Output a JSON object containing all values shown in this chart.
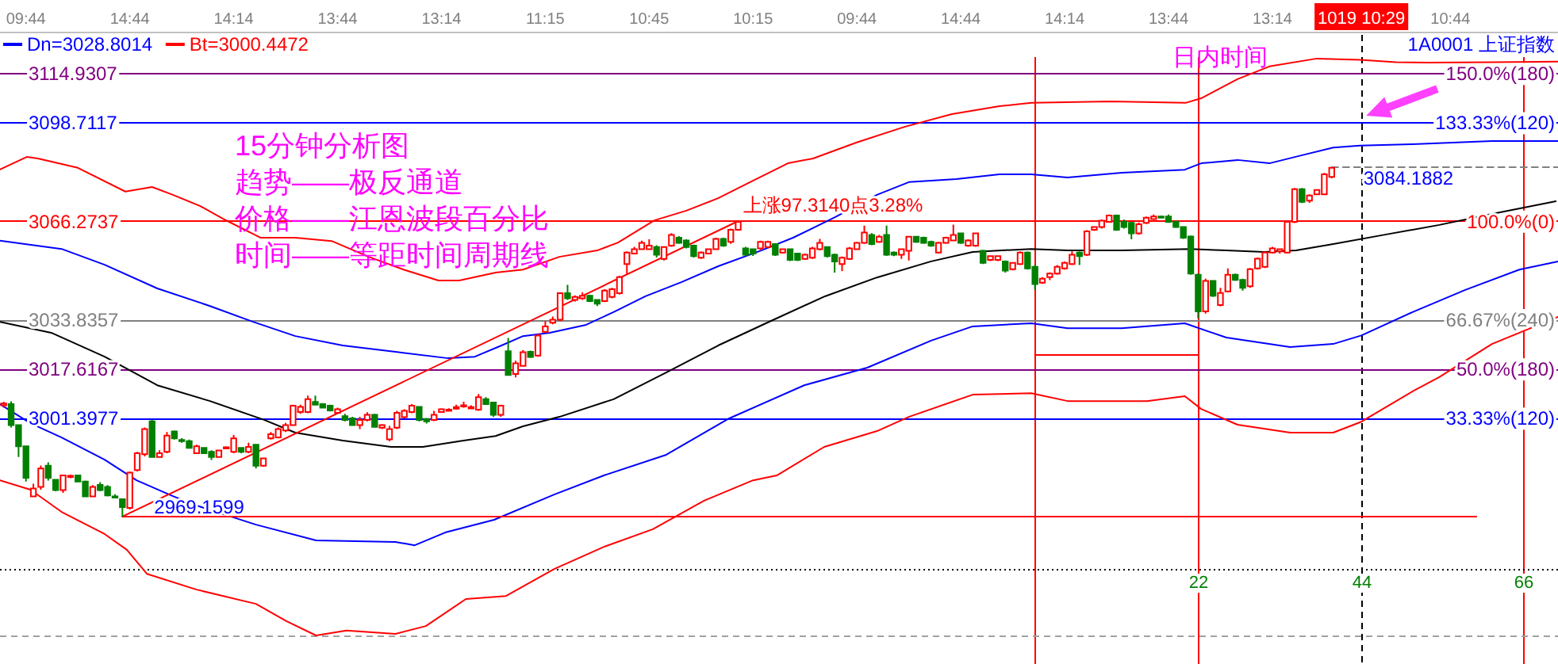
{
  "chart_data": {
    "type": "candlestick",
    "title": "1A0001 上证指数",
    "xlabel": "日内时间",
    "categories": [
      null,
      null,
      null,
      "09:44",
      null,
      null,
      null,
      null,
      null,
      null,
      null,
      null,
      null,
      null,
      null,
      null,
      null,
      "14:44",
      null,
      null,
      null,
      null,
      null,
      null,
      null,
      null,
      null,
      null,
      null,
      null,
      null,
      "14:14",
      null,
      null,
      null,
      null,
      null,
      null,
      null,
      null,
      null,
      null,
      null,
      null,
      null,
      "13:44",
      null,
      null,
      null,
      null,
      null,
      null,
      null,
      null,
      null,
      null,
      null,
      null,
      null,
      "13:14",
      null,
      null,
      null,
      null,
      null,
      null,
      null,
      null,
      null,
      null,
      null,
      null,
      null,
      "11:15",
      null,
      null,
      null,
      null,
      null,
      null,
      null,
      null,
      null,
      null,
      null,
      null,
      null,
      "10:45",
      null,
      null,
      null,
      null,
      null,
      null,
      null,
      null,
      null,
      null,
      null,
      null,
      null,
      "10:15",
      null,
      null,
      null,
      null,
      null,
      null,
      null,
      null,
      null,
      null,
      null,
      null,
      null,
      "09:44",
      null,
      null,
      null,
      null,
      null,
      null,
      null,
      null,
      null,
      null,
      null,
      null,
      null,
      "14:44",
      null,
      null,
      null,
      null,
      null,
      null,
      null,
      null,
      null,
      null,
      null,
      null,
      null,
      "14:14",
      null,
      null,
      null,
      null,
      null,
      null,
      null,
      null,
      null,
      null,
      null,
      null,
      null,
      "13:44",
      null,
      null,
      null,
      null,
      null,
      null,
      null,
      null,
      null,
      null,
      null,
      null,
      null,
      "13:14",
      null,
      null,
      null,
      null,
      null,
      null,
      null,
      null,
      null,
      null,
      null,
      "1019 10:29",
      null,
      null,
      null,
      null,
      null,
      null,
      null,
      null,
      null,
      null,
      null,
      "10:44",
      null,
      null,
      null,
      null,
      null,
      null,
      null,
      null,
      null,
      null,
      null,
      null,
      null,
      null
    ],
    "ohlc": [
      [
        3005.8,
        3007,
        3005,
        3006.4
      ],
      [
        3006.2,
        3007.1,
        2998.5,
        2999.3
      ],
      [
        2999.3,
        2999.5,
        2988.8,
        2992.3
      ],
      [
        2992.3,
        2992.5,
        2980.7,
        2981.9
      ],
      [
        2975.8,
        2980,
        2975.5,
        2978.4
      ],
      [
        2978.9,
        2986,
        2978,
        2985.0
      ],
      [
        2985.9,
        2987,
        2981,
        2981.9
      ],
      [
        2981.3,
        2981.5,
        2977.5,
        2977.9
      ],
      [
        2977.9,
        2983,
        2977,
        2982.7
      ],
      [
        2982.2,
        2983,
        2981.8,
        2982.6
      ],
      [
        2982.7,
        2983,
        2980.5,
        2980.7
      ],
      [
        2980.7,
        2981,
        2975.5,
        2975.8
      ],
      [
        2975.8,
        2979.5,
        2975.5,
        2978.9
      ],
      [
        2979.6,
        2980.5,
        2977.5,
        2977.9
      ],
      [
        2978.9,
        2979.5,
        2975.8,
        2976.1
      ],
      [
        2975.8,
        2976.5,
        2975.2,
        2975.5
      ],
      [
        2974.9,
        2975,
        2969.1599,
        2972.3
      ],
      [
        2972.0,
        2984,
        2971.5,
        2983.6
      ],
      [
        2984.5,
        2990.5,
        2984,
        2990.0
      ],
      [
        2989.7,
        2998.5,
        2989,
        2998.0
      ],
      [
        3000.5,
        3001,
        2988.5,
        2988.8
      ],
      [
        2988.8,
        2991,
        2988.5,
        2990.0
      ],
      [
        2990.5,
        2997,
        2990,
        2995.8
      ],
      [
        2997.2,
        2997.5,
        2994.5,
        2994.9
      ],
      [
        2994.4,
        2995,
        2993.5,
        2994.0
      ],
      [
        2994.0,
        2994.5,
        2991.5,
        2991.8
      ],
      [
        2990.0,
        2992.8,
        2989.8,
        2992.3
      ],
      [
        2991.8,
        2992,
        2989.8,
        2990.0
      ],
      [
        2990.5,
        2991,
        2987.8,
        2988.8
      ],
      [
        2988.8,
        2991.2,
        2988.5,
        2990.9
      ],
      [
        2991.6,
        2992.3,
        2991.3,
        2992.0
      ],
      [
        2990.5,
        2996,
        2990,
        2994.9
      ],
      [
        2991.8,
        2992,
        2990,
        2990.5
      ],
      [
        2990.5,
        2993.5,
        2990,
        2992.1
      ],
      [
        2992.8,
        2993,
        2985,
        2985.9
      ],
      [
        2985.9,
        2988.6,
        2985.6,
        2988.3
      ],
      [
        2994.9,
        2997,
        2994.5,
        2996.3
      ],
      [
        2995.2,
        2998.5,
        2994.9,
        2998.0
      ],
      [
        2997.5,
        3000,
        2997,
        2999.3
      ],
      [
        2999.3,
        3006,
        2999,
        3005.7
      ],
      [
        3003.6,
        3006,
        3003,
        3005.3
      ],
      [
        3003.6,
        3009,
        3003.2,
        3007.8
      ],
      [
        3006.9,
        3009,
        3005.8,
        3006.0
      ],
      [
        3006.2,
        3006.5,
        3004.8,
        3005.0
      ],
      [
        3005.7,
        3006,
        3003.8,
        3004.1
      ],
      [
        3003.3,
        3005,
        3003,
        3004.5
      ],
      [
        3002.2,
        3003,
        3000.5,
        3001.0
      ],
      [
        3001.5,
        3002,
        2999,
        2999.3
      ],
      [
        2999.3,
        3002,
        2998,
        3001.0
      ],
      [
        3001.0,
        3003.5,
        3000.5,
        3002.7
      ],
      [
        3002.7,
        3003,
        2998.4,
        2998.7
      ],
      [
        2998.4,
        2999.6,
        2998,
        2999.3
      ],
      [
        2994.6,
        2999,
        2994,
        2998.0
      ],
      [
        2998.4,
        3004,
        2998,
        3003.3
      ],
      [
        3001.9,
        3004.5,
        3001.5,
        3004.0
      ],
      [
        3003.6,
        3006.2,
        3003.2,
        3005.7
      ],
      [
        3005.3,
        3005.5,
        3000.5,
        3001.0
      ],
      [
        3001.3,
        3001.6,
        2999.8,
        3000.5
      ],
      [
        3001.0,
        3004,
        3000.6,
        3002.7
      ],
      [
        3003.6,
        3004.8,
        3003.3,
        3004.5
      ],
      [
        3004.2,
        3004.8,
        3003.8,
        3004.4
      ],
      [
        3004.7,
        3006,
        3004.4,
        3005.2
      ],
      [
        3005.4,
        3007,
        3005,
        3005.8
      ],
      [
        3004.8,
        3005.8,
        3004.5,
        3005.2
      ],
      [
        3004.4,
        3009.5,
        3004,
        3008.5
      ],
      [
        3007.8,
        3008.5,
        3006,
        3006.2
      ],
      [
        3006.7,
        3007,
        3002,
        3002.7
      ],
      [
        3002.7,
        3006,
        3002,
        3005.7
      ],
      [
        3023.6,
        3028,
        3015.5,
        3015.8
      ],
      [
        3016.1,
        3020.5,
        3015,
        3019.6
      ],
      [
        3018.8,
        3024,
        3018.5,
        3023.3
      ],
      [
        3023.4,
        3023.8,
        3021.4,
        3021.7
      ],
      [
        3022.2,
        3029.5,
        3021.8,
        3028.8
      ],
      [
        3030.0,
        3033.5,
        3029.6,
        3031.8
      ],
      [
        3033.0,
        3035,
        3032.5,
        3034.0
      ],
      [
        3034.0,
        3043,
        3033.5,
        3042.7
      ],
      [
        3042.7,
        3045.5,
        3040.5,
        3041.0
      ],
      [
        3040.5,
        3042,
        3040,
        3041.5
      ],
      [
        3041.0,
        3043,
        3040.5,
        3041.9
      ],
      [
        3041.9,
        3042.2,
        3039.8,
        3040.1
      ],
      [
        3040.5,
        3040.8,
        3038.5,
        3039.3
      ],
      [
        3040.1,
        3044,
        3039.8,
        3043.6
      ],
      [
        3041.5,
        3044.5,
        3041,
        3044.0
      ],
      [
        3042.7,
        3048.5,
        3042.3,
        3048.0
      ],
      [
        3052.3,
        3056.5,
        3049,
        3056.1
      ],
      [
        3055.8,
        3058,
        3055.5,
        3057.2
      ],
      [
        3057.2,
        3060,
        3057,
        3059.3
      ],
      [
        3057.2,
        3060.5,
        3057,
        3058.4
      ],
      [
        3057.9,
        3058.5,
        3054.5,
        3055.4
      ],
      [
        3054.0,
        3058.2,
        3053.5,
        3057.9
      ],
      [
        3058.4,
        3062.5,
        3058,
        3061.9
      ],
      [
        3061.0,
        3061.5,
        3059,
        3059.3
      ],
      [
        3060.1,
        3060.5,
        3057.5,
        3057.9
      ],
      [
        3058.4,
        3058.7,
        3054.5,
        3054.9
      ],
      [
        3054.4,
        3056.5,
        3054,
        3056.1
      ],
      [
        3055.8,
        3057.5,
        3055.5,
        3057.2
      ],
      [
        3057.2,
        3061,
        3057,
        3060.6
      ],
      [
        3060.6,
        3061,
        3058,
        3058.4
      ],
      [
        3059.6,
        3064,
        3059,
        3063.6
      ],
      [
        3063.6,
        3066.4739,
        3063.3,
        3066.2
      ],
      [
        3057.5,
        3058,
        3054.9,
        3055.4
      ],
      [
        3057.2,
        3057.5,
        3055,
        3055.8
      ],
      [
        3057.5,
        3060,
        3057,
        3059.6
      ],
      [
        3057.9,
        3060,
        3057.5,
        3059.6
      ],
      [
        3058.9,
        3059.2,
        3055,
        3055.4
      ],
      [
        3056.1,
        3057.5,
        3055.8,
        3057.2
      ],
      [
        3057.2,
        3057.5,
        3053.3,
        3053.7
      ],
      [
        3055.8,
        3056,
        3053.3,
        3053.7
      ],
      [
        3054.0,
        3055.8,
        3053.7,
        3055.4
      ],
      [
        3054.4,
        3058,
        3054,
        3057.5
      ],
      [
        3057.2,
        3060.6,
        3056.8,
        3059.3
      ],
      [
        3057.9,
        3058.2,
        3054.5,
        3054.9
      ],
      [
        3055.4,
        3055.8,
        3049.5,
        3053.2
      ],
      [
        3052.3,
        3054.8,
        3050,
        3054.4
      ],
      [
        3054.0,
        3057.9,
        3053.7,
        3057.5
      ],
      [
        3057.2,
        3059.6,
        3057,
        3059.3
      ],
      [
        3059.3,
        3065,
        3059,
        3062.7
      ],
      [
        3061.9,
        3062.5,
        3058.5,
        3058.9
      ],
      [
        3059.6,
        3061.9,
        3059.3,
        3061.3
      ],
      [
        3061.9,
        3065,
        3055,
        3055.4
      ],
      [
        3056.1,
        3056.5,
        3054.9,
        3055.4
      ],
      [
        3055.4,
        3057.5,
        3054,
        3057.2
      ],
      [
        3056.7,
        3061.6,
        3053.5,
        3061.3
      ],
      [
        3061.3,
        3061.6,
        3059.3,
        3059.6
      ],
      [
        3061.0,
        3061.3,
        3059,
        3059.3
      ],
      [
        3059.6,
        3060,
        3058,
        3058.4
      ],
      [
        3056.1,
        3059.6,
        3055.8,
        3059.3
      ],
      [
        3059.3,
        3061.3,
        3059,
        3061.0
      ],
      [
        3060.1,
        3065.3,
        3059.8,
        3061.9
      ],
      [
        3062.4,
        3062.7,
        3059,
        3059.3
      ],
      [
        3058.4,
        3060.5,
        3058,
        3060.1
      ],
      [
        3058.4,
        3062.7,
        3058,
        3062.4
      ],
      [
        3056.7,
        3057,
        3052.3,
        3052.7
      ],
      [
        3053.7,
        3055.2,
        3053.3,
        3054.9
      ],
      [
        3053.7,
        3055.2,
        3053.3,
        3054.9
      ],
      [
        3053.2,
        3053.5,
        3049.5,
        3050.2
      ],
      [
        3050.6,
        3053,
        3050.2,
        3052.7
      ],
      [
        3052.3,
        3056.5,
        3052,
        3056.1
      ],
      [
        3056.1,
        3056.5,
        3050.5,
        3050.9
      ],
      [
        3051.4,
        3052,
        3043.9,
        3045.7
      ],
      [
        3046.2,
        3048,
        3045.8,
        3047.5
      ],
      [
        3048.0,
        3049.6,
        3047,
        3049.2
      ],
      [
        3049.2,
        3052,
        3048.8,
        3051.4
      ],
      [
        3050.9,
        3053.2,
        3050.5,
        3052.7
      ],
      [
        3052.3,
        3056.5,
        3052,
        3055.4
      ],
      [
        3056.1,
        3056.5,
        3052,
        3054.9
      ],
      [
        3055.4,
        3063.5,
        3055,
        3063.1
      ],
      [
        3063.6,
        3064.8,
        3063.3,
        3064.5
      ],
      [
        3064.5,
        3067,
        3064,
        3066.6
      ],
      [
        3066.2,
        3068.6,
        3066,
        3068.3
      ],
      [
        3068.3,
        3068.6,
        3063.3,
        3063.6
      ],
      [
        3066.2,
        3067,
        3064,
        3064.5
      ],
      [
        3065.9,
        3066.2,
        3060.5,
        3062.4
      ],
      [
        3062.4,
        3066,
        3062,
        3065.4
      ],
      [
        3065.9,
        3068,
        3065.5,
        3067.6
      ],
      [
        3067.1,
        3068.6,
        3066.8,
        3068.0
      ],
      [
        3068.0,
        3068.3,
        3067.3,
        3067.6
      ],
      [
        3068.0,
        3068.6,
        3065.9,
        3066.2
      ],
      [
        3066.2,
        3066.6,
        3064.2,
        3064.5
      ],
      [
        3064.5,
        3064.8,
        3060.6,
        3061.0
      ],
      [
        3061.4,
        3061.7,
        3048.8,
        3049.2
      ],
      [
        3048.8,
        3049.2,
        3034.4,
        3036.7
      ],
      [
        3036.7,
        3047.5,
        3036,
        3046.8
      ],
      [
        3046.8,
        3047,
        3041.5,
        3041.9
      ],
      [
        3038.8,
        3044.5,
        3038.4,
        3042.8
      ],
      [
        3043.3,
        3050.9,
        3043,
        3048.8
      ],
      [
        3048.8,
        3049.2,
        3046.8,
        3047.1
      ],
      [
        3047.1,
        3047.5,
        3043.6,
        3044.5
      ],
      [
        3045.0,
        3051,
        3044.5,
        3050.6
      ],
      [
        3050.9,
        3054.5,
        3050.5,
        3054.1
      ],
      [
        3051.4,
        3056.5,
        3051,
        3056.1
      ],
      [
        3056.1,
        3058,
        3055.8,
        3057.5
      ],
      [
        3056.5,
        3057.5,
        3055.8,
        3057.2
      ],
      [
        3056.1,
        3066.6,
        3055.8,
        3066.2
      ],
      [
        3066.2,
        3077.4,
        3065.8,
        3077.0
      ],
      [
        3077.0,
        3077.4,
        3072.4,
        3072.8
      ],
      [
        3073.2,
        3075.3,
        3072.5,
        3074.9
      ],
      [
        3075.3,
        3077,
        3075,
        3076.7
      ],
      [
        3075.3,
        3082.3,
        3075,
        3081.9
      ],
      [
        3081.0,
        3084.1882,
        3080.6,
        3084.0
      ],
      null,
      null,
      null,
      null,
      null,
      null,
      null,
      null,
      null,
      null,
      null,
      null,
      null,
      null,
      null,
      null,
      null,
      null,
      null,
      null,
      null,
      null,
      null,
      null,
      null,
      null,
      null,
      null,
      null,
      null
    ],
    "series": [
      {
        "type": "line",
        "axis": "x2",
        "color": "#ff0000",
        "x": [
          -139.5,
          -135.9,
          -134.4,
          -129.0,
          -122.6,
          -119.0,
          -116.2,
          -112.5,
          -109.1,
          -104.4,
          -99.7,
          -94.8,
          -89.8,
          -85.1,
          -80.4,
          -77.6,
          -72.7,
          -69.0,
          -64.1,
          -59.0,
          -56.2,
          -51.3,
          -47.0,
          -42.7,
          -38.4,
          -33.3,
          -29.9,
          -24.1,
          -17.6,
          -11.2,
          -4.8,
          -0.5,
          10.2,
          20.3,
          22.4,
          27.3,
          31.6,
          38.0,
          43.8,
          48.7,
          53.0,
          61.6,
          70.5
        ],
        "values": [
          3083.5,
          3087.6,
          3087.1,
          3084.0,
          3076.2,
          3077.7,
          3075.1,
          3071.4,
          3066.8,
          3061.0,
          3061.0,
          3059.9,
          3054.7,
          3050.5,
          3046.9,
          3046.9,
          3049.5,
          3050.5,
          3054.7,
          3056.8,
          3059.4,
          3066.7,
          3069.9,
          3074.0,
          3079.3,
          3085.5,
          3087.1,
          3092.3,
          3097.5,
          3101.7,
          3104.3,
          3105.4,
          3105.9,
          3105.4,
          3106.9,
          3113.2,
          3117.4,
          3120.0,
          3119.6,
          3118.8,
          3118.7,
          3118.8,
          3119.0
        ]
      },
      {
        "type": "line",
        "axis": "x2",
        "color": "#0000ff",
        "x": [
          -139.5,
          -131.2,
          -125.4,
          -118.3,
          -111.2,
          -105.4,
          -99.7,
          -93.3,
          -86.2,
          -79.1,
          -75.5,
          -71.9,
          -69.0,
          -65.4,
          -60.5,
          -56.8,
          -52.5,
          -47.6,
          -42.7,
          -36.9,
          -32.6,
          -26.9,
          -21.3,
          -17.0,
          -10.6,
          -4.8,
          -0.5,
          4.4,
          11.7,
          20.2,
          22.4,
          27.3,
          31.6,
          35.9,
          40.2,
          43.8,
          50.9,
          61.6,
          70.5
        ],
        "values": [
          3060.0,
          3057.3,
          3052.1,
          3044.3,
          3038.5,
          3033.3,
          3028.6,
          3025.5,
          3023.4,
          3021.3,
          3021.8,
          3025.5,
          3028.6,
          3029.7,
          3032.3,
          3036.5,
          3041.7,
          3046.4,
          3051.6,
          3056.8,
          3061.0,
          3067.8,
          3075.1,
          3079.3,
          3080.3,
          3081.9,
          3081.9,
          3080.8,
          3082.4,
          3083.4,
          3085.5,
          3086.6,
          3085.5,
          3088.1,
          3090.7,
          3091.3,
          3091.8,
          3092.8,
          3092.8
        ]
      },
      {
        "type": "line",
        "axis": "x2",
        "color": "#000000",
        "x": [
          -139.5,
          -132.6,
          -125.4,
          -118.3,
          -111.2,
          -103.9,
          -99.7,
          -93.3,
          -86.8,
          -82.5,
          -77.0,
          -72.7,
          -69.0,
          -64.1,
          -56.8,
          -49.7,
          -42.7,
          -35.4,
          -28.3,
          -21.3,
          -14.0,
          -8.4,
          -0.5,
          4.4,
          11.7,
          20.9,
          25.8,
          30.9,
          35.2,
          40.2,
          47.2,
          54.5,
          61.6,
          70.2
        ],
        "values": [
          3033.3,
          3029.7,
          3021.8,
          3012.4,
          3007.2,
          3001.0,
          2996.8,
          2994.2,
          2992.1,
          2992.1,
          2994.2,
          2995.7,
          2998.9,
          3002.0,
          3007.8,
          3016.6,
          3025.5,
          3033.8,
          3041.7,
          3047.9,
          3053.2,
          3056.3,
          3057.3,
          3056.8,
          3056.8,
          3057.3,
          3056.8,
          3056.3,
          3056.8,
          3058.9,
          3062.0,
          3065.2,
          3068.8,
          3073.0
        ]
      },
      {
        "type": "line",
        "axis": "x2",
        "name": "Dn=3028.8014",
        "color": "#0000ff",
        "x": [
          -139.5,
          -135.4,
          -131.2,
          -125.4,
          -121.1,
          -116.2,
          -113.0,
          -105.0,
          -96.9,
          -86.2,
          -83.6,
          -79.5,
          -72.9,
          -64.8,
          -58.1,
          -49.7,
          -41.2,
          -31.1,
          -22.6,
          -14.0,
          -8.4,
          -0.5,
          4.4,
          11.7,
          20.2,
          25.8,
          34.4,
          40.2,
          44,
          50.9,
          58.0,
          65.3,
          70.5
        ],
        "values": [
          3006.2,
          2999.9,
          2995.2,
          2987.9,
          2981.1,
          2975.9,
          2972.8,
          2966.5,
          2961.3,
          2960.8,
          2959.7,
          2963.9,
          2968.1,
          2976.4,
          2982.7,
          2989.5,
          3001.5,
          3012.4,
          3018.2,
          3027.1,
          3031.8,
          3032.8,
          3031.2,
          3031.2,
          3032.8,
          3028.1,
          3025.0,
          3026.0,
          3028.8,
          3036.5,
          3043.8,
          3050.5,
          3053.2
        ]
      },
      {
        "type": "line",
        "axis": "x2",
        "name": "Bt=3000.4472",
        "color": "#ff0000",
        "x": [
          -139.5,
          -135.4,
          -131.2,
          -125.4,
          -122.4,
          -119.7,
          -113.0,
          -105.0,
          -100.9,
          -96.9,
          -92.8,
          -86.2,
          -82.1,
          -76.7,
          -71.3,
          -64.8,
          -58.1,
          -51.5,
          -44.6,
          -38.0,
          -34.8,
          -28.4,
          -21.3,
          -17.0,
          -8.4,
          -0.5,
          4.4,
          15.1,
          20.2,
          22.4,
          27.3,
          34.4,
          40.2,
          44,
          50.9,
          54.5,
          61.6,
          70.5
        ],
        "values": [
          2981.1,
          2978.0,
          2970.7,
          2963.4,
          2958.2,
          2950.3,
          2945.1,
          2940.4,
          2934.7,
          2930.0,
          2931.6,
          2930.5,
          2933.1,
          2942.0,
          2943.0,
          2951.9,
          2959.2,
          2965.0,
          2974.4,
          2981.1,
          2982.7,
          2992.1,
          2997.3,
          3002.0,
          3009.3,
          3009.8,
          3007.2,
          3007.2,
          3008.8,
          3004.6,
          2999.4,
          2996.8,
          2996.8,
          3000.4,
          3010.4,
          3015.1,
          3026.0,
          3034.9
        ]
      },
      {
        "type": "line",
        "axis": "x2",
        "color": "#ff0000",
        "x": [
          -123,
          -40
        ],
        "values": [
          2969.1599,
          3066.4739
        ]
      },
      {
        "type": "line",
        "axis": "x2",
        "color": "#ff0000",
        "x": [
          -123,
          59.5
        ],
        "values": [
          2969.1599,
          2969.1599
        ]
      },
      {
        "type": "line",
        "axis": "x2",
        "color": "#ff0000",
        "x": [
          0,
          22
        ],
        "values": [
          3022.4,
          3022.4
        ]
      },
      {
        "type": "line",
        "axis": "x2",
        "color": "#808080",
        "line_style": "dashed",
        "x": [
          40,
          70.5
        ],
        "values": [
          3084.1882,
          3084.1882
        ]
      }
    ],
    "ylim": [
      2920.6,
      3127.8
    ],
    "yticks": [
      3114.9307,
      3098.7117,
      3066.2737,
      3033.8357,
      3017.6167,
      3001.3977
    ],
    "y2lim": [
      -49.695,
      163.225
    ],
    "x2lim": [
      -139.5,
      70.5
    ],
    "x2ticks": [
      22,
      44,
      66
    ],
    "ref_lines": [
      {
        "axis": "y2",
        "value": 150,
        "label": "150.0%(180)",
        "color": "#800080"
      },
      {
        "axis": "y2",
        "value": 133.33,
        "label": "133.33%(120)",
        "color": "#0000ff"
      },
      {
        "axis": "y2",
        "value": 100,
        "label": "100.0%(0)",
        "color": "#ff0000"
      },
      {
        "axis": "y2",
        "value": 66.67,
        "label": "66.67%(240)",
        "color": "#808080"
      },
      {
        "axis": "y2",
        "value": 50,
        "label": "50.0%(180)",
        "color": "#800080"
      },
      {
        "axis": "y2",
        "value": 33.33,
        "label": "33.33%(120)",
        "color": "#0000ff"
      },
      {
        "axis": "y",
        "value": 2951.5,
        "color": "#000000",
        "line_style": "dotted"
      },
      {
        "axis": "y",
        "value": 2929.5,
        "color": "#a0a0a0",
        "line_style": "dashed"
      },
      {
        "axis": "x2",
        "value": 0,
        "color": "#ff0000"
      },
      {
        "axis": "x2",
        "value": 22,
        "color": "#ff0000"
      },
      {
        "axis": "x2",
        "value": 44,
        "color": "#000000",
        "line_style": "dashed"
      },
      {
        "axis": "x2",
        "value": 66,
        "color": "#ff0000"
      }
    ],
    "annotations": [
      "15分钟分析图",
      "趋势——极反通道",
      "价格——江恩波段百分比",
      "时间——等距时间周期线",
      {
        "text": "上涨97.3140点3.28%",
        "y": 3066.4739
      },
      {
        "text": "2969.1599",
        "y": 2969.1599
      },
      {
        "text": "3084.1882",
        "y": 3084.1882
      }
    ],
    "legend": "top left"
  }
}
